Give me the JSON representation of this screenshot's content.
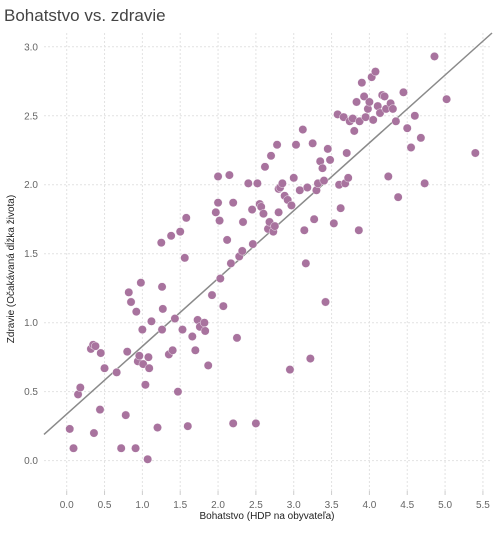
{
  "chart_data": {
    "type": "scatter",
    "title": "Bohatstvo vs. zdravie",
    "xlabel": "Bohatstvo (HDP na obyvateľa)",
    "ylabel": "Zdravie (Očakávaná dĺžka života)",
    "xlim": [
      -0.3,
      5.62
    ],
    "ylim": [
      -0.22,
      3.1
    ],
    "xticks": [
      "0.0",
      "0.5",
      "1.0",
      "1.5",
      "2.0",
      "2.5",
      "3.0",
      "3.5",
      "4.0",
      "4.5",
      "5.0",
      "5.5"
    ],
    "yticks": [
      "0.0",
      "0.5",
      "1.0",
      "1.5",
      "2.0",
      "2.5",
      "3.0"
    ],
    "grid": true,
    "marker_color": "#a8739e",
    "trend_color": "#8a8a8a",
    "trend_line": {
      "x": [
        -0.3,
        5.62
      ],
      "y": [
        0.19,
        3.1
      ]
    },
    "points": [
      [
        0.04,
        0.23
      ],
      [
        0.09,
        0.09
      ],
      [
        0.15,
        0.48
      ],
      [
        0.18,
        0.53
      ],
      [
        0.32,
        0.81
      ],
      [
        0.35,
        0.84
      ],
      [
        0.36,
        0.2
      ],
      [
        0.38,
        0.83
      ],
      [
        0.44,
        0.37
      ],
      [
        0.45,
        0.78
      ],
      [
        0.5,
        0.67
      ],
      [
        0.66,
        0.64
      ],
      [
        0.72,
        0.09
      ],
      [
        0.78,
        0.33
      ],
      [
        0.8,
        0.79
      ],
      [
        0.82,
        1.22
      ],
      [
        0.85,
        1.15
      ],
      [
        0.91,
        0.09
      ],
      [
        0.92,
        1.08
      ],
      [
        0.94,
        0.72
      ],
      [
        0.96,
        0.76
      ],
      [
        0.98,
        1.29
      ],
      [
        1.0,
        0.95
      ],
      [
        1.01,
        0.7
      ],
      [
        1.04,
        0.55
      ],
      [
        1.07,
        0.01
      ],
      [
        1.08,
        0.75
      ],
      [
        1.09,
        0.67
      ],
      [
        1.12,
        1.01
      ],
      [
        1.2,
        0.24
      ],
      [
        1.25,
        1.58
      ],
      [
        1.26,
        1.26
      ],
      [
        1.26,
        0.95
      ],
      [
        1.27,
        1.1
      ],
      [
        1.35,
        0.77
      ],
      [
        1.38,
        1.63
      ],
      [
        1.4,
        0.8
      ],
      [
        1.43,
        1.03
      ],
      [
        1.47,
        0.5
      ],
      [
        1.5,
        1.66
      ],
      [
        1.53,
        0.95
      ],
      [
        1.56,
        1.47
      ],
      [
        1.58,
        1.76
      ],
      [
        1.6,
        0.25
      ],
      [
        1.66,
        0.9
      ],
      [
        1.7,
        0.8
      ],
      [
        1.73,
        1.02
      ],
      [
        1.76,
        0.97
      ],
      [
        1.82,
        1.0
      ],
      [
        1.83,
        0.94
      ],
      [
        1.87,
        0.69
      ],
      [
        1.92,
        1.2
      ],
      [
        1.97,
        1.8
      ],
      [
        2.0,
        1.87
      ],
      [
        2.0,
        2.06
      ],
      [
        2.02,
        1.74
      ],
      [
        2.03,
        1.32
      ],
      [
        2.07,
        1.12
      ],
      [
        2.12,
        1.6
      ],
      [
        2.15,
        2.07
      ],
      [
        2.17,
        1.43
      ],
      [
        2.2,
        0.27
      ],
      [
        2.2,
        1.87
      ],
      [
        2.25,
        0.89
      ],
      [
        2.28,
        1.48
      ],
      [
        2.32,
        1.52
      ],
      [
        2.33,
        1.73
      ],
      [
        2.4,
        2.01
      ],
      [
        2.45,
        1.82
      ],
      [
        2.46,
        1.57
      ],
      [
        2.5,
        0.27
      ],
      [
        2.52,
        2.01
      ],
      [
        2.55,
        1.86
      ],
      [
        2.57,
        1.84
      ],
      [
        2.6,
        1.79
      ],
      [
        2.62,
        2.13
      ],
      [
        2.66,
        1.68
      ],
      [
        2.68,
        1.73
      ],
      [
        2.7,
        2.21
      ],
      [
        2.73,
        1.66
      ],
      [
        2.75,
        1.7
      ],
      [
        2.78,
        2.29
      ],
      [
        2.8,
        1.97
      ],
      [
        2.8,
        1.8
      ],
      [
        2.82,
        1.98
      ],
      [
        2.85,
        2.01
      ],
      [
        2.88,
        1.92
      ],
      [
        2.92,
        1.89
      ],
      [
        2.95,
        0.66
      ],
      [
        2.97,
        1.85
      ],
      [
        3.0,
        2.05
      ],
      [
        3.03,
        2.29
      ],
      [
        3.08,
        1.96
      ],
      [
        3.12,
        2.4
      ],
      [
        3.14,
        1.67
      ],
      [
        3.16,
        1.43
      ],
      [
        3.18,
        1.98
      ],
      [
        3.22,
        0.74
      ],
      [
        3.25,
        2.3
      ],
      [
        3.27,
        1.75
      ],
      [
        3.3,
        1.96
      ],
      [
        3.32,
        2.01
      ],
      [
        3.35,
        2.17
      ],
      [
        3.38,
        2.12
      ],
      [
        3.4,
        2.03
      ],
      [
        3.42,
        1.15
      ],
      [
        3.45,
        2.26
      ],
      [
        3.48,
        2.18
      ],
      [
        3.53,
        1.72
      ],
      [
        3.58,
        2.51
      ],
      [
        3.6,
        2.0
      ],
      [
        3.62,
        1.83
      ],
      [
        3.66,
        2.49
      ],
      [
        3.68,
        2.01
      ],
      [
        3.7,
        2.23
      ],
      [
        3.72,
        2.05
      ],
      [
        3.74,
        2.46
      ],
      [
        3.78,
        2.48
      ],
      [
        3.8,
        2.39
      ],
      [
        3.83,
        2.6
      ],
      [
        3.86,
        1.67
      ],
      [
        3.87,
        2.46
      ],
      [
        3.9,
        2.74
      ],
      [
        3.93,
        2.64
      ],
      [
        3.95,
        2.49
      ],
      [
        3.98,
        2.55
      ],
      [
        4.0,
        2.6
      ],
      [
        4.03,
        2.78
      ],
      [
        4.05,
        2.47
      ],
      [
        4.08,
        2.82
      ],
      [
        4.11,
        2.57
      ],
      [
        4.14,
        2.52
      ],
      [
        4.17,
        2.65
      ],
      [
        4.2,
        2.64
      ],
      [
        4.22,
        2.55
      ],
      [
        4.25,
        2.06
      ],
      [
        4.28,
        2.59
      ],
      [
        4.31,
        2.55
      ],
      [
        4.35,
        2.46
      ],
      [
        4.38,
        1.91
      ],
      [
        4.45,
        2.67
      ],
      [
        4.5,
        2.41
      ],
      [
        4.55,
        2.27
      ],
      [
        4.6,
        2.5
      ],
      [
        4.68,
        2.34
      ],
      [
        4.73,
        2.01
      ],
      [
        4.86,
        2.93
      ],
      [
        5.02,
        2.62
      ],
      [
        5.4,
        2.23
      ]
    ]
  }
}
